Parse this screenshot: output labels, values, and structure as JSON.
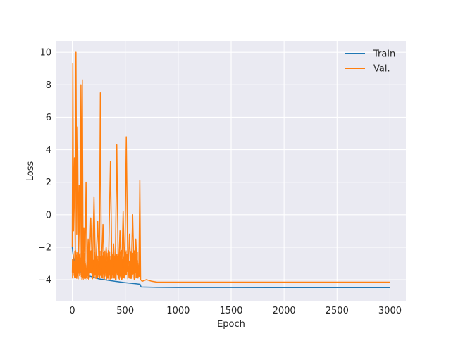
{
  "chart_data": {
    "type": "line",
    "title": "",
    "xlabel": "Epoch",
    "ylabel": "Loss",
    "xlim": [
      -150,
      3150
    ],
    "ylim": [
      -5.3,
      10.7
    ],
    "x_ticks": [
      0,
      500,
      1000,
      1500,
      2000,
      2500,
      3000
    ],
    "y_ticks": [
      -4,
      -2,
      0,
      2,
      4,
      6,
      8,
      10
    ],
    "grid": true,
    "style": "seaborn-darkgrid",
    "legend_position": "upper right",
    "series": [
      {
        "name": "Train",
        "color": "#1f77b4",
        "points": [
          [
            0,
            -2.0
          ],
          [
            10,
            -2.6
          ],
          [
            25,
            -3.0
          ],
          [
            50,
            -3.3
          ],
          [
            75,
            -3.5
          ],
          [
            100,
            -3.6
          ],
          [
            150,
            -3.75
          ],
          [
            200,
            -3.85
          ],
          [
            250,
            -3.95
          ],
          [
            300,
            -4.0
          ],
          [
            400,
            -4.1
          ],
          [
            500,
            -4.18
          ],
          [
            600,
            -4.25
          ],
          [
            640,
            -4.28
          ],
          [
            650,
            -4.45
          ],
          [
            800,
            -4.47
          ],
          [
            1000,
            -4.48
          ],
          [
            1500,
            -4.48
          ],
          [
            2000,
            -4.49
          ],
          [
            2500,
            -4.49
          ],
          [
            3000,
            -4.49
          ]
        ]
      },
      {
        "name": "Val.",
        "color": "#ff7f0e",
        "points": [
          [
            0,
            -2.0
          ],
          [
            5,
            9.3
          ],
          [
            12,
            -1.0
          ],
          [
            20,
            3.5
          ],
          [
            28,
            -2.5
          ],
          [
            35,
            10.0
          ],
          [
            42,
            -1.2
          ],
          [
            50,
            5.4
          ],
          [
            58,
            -2.8
          ],
          [
            65,
            1.8
          ],
          [
            75,
            -3.0
          ],
          [
            82,
            8.0
          ],
          [
            88,
            -2.8
          ],
          [
            95,
            8.3
          ],
          [
            102,
            -3.2
          ],
          [
            110,
            -0.8
          ],
          [
            120,
            -3.4
          ],
          [
            130,
            2.0
          ],
          [
            140,
            -3.5
          ],
          [
            150,
            -1.5
          ],
          [
            160,
            -3.6
          ],
          [
            175,
            -0.2
          ],
          [
            190,
            -3.6
          ],
          [
            205,
            1.1
          ],
          [
            220,
            -3.7
          ],
          [
            240,
            -0.4
          ],
          [
            255,
            -3.7
          ],
          [
            265,
            7.5
          ],
          [
            275,
            -3.8
          ],
          [
            290,
            -0.6
          ],
          [
            305,
            -3.8
          ],
          [
            320,
            -2.0
          ],
          [
            340,
            -3.9
          ],
          [
            360,
            3.3
          ],
          [
            375,
            -3.9
          ],
          [
            390,
            -1.8
          ],
          [
            405,
            -3.9
          ],
          [
            420,
            4.3
          ],
          [
            435,
            -3.9
          ],
          [
            450,
            -1.0
          ],
          [
            465,
            -3.9
          ],
          [
            480,
            0.2
          ],
          [
            495,
            -3.9
          ],
          [
            510,
            4.8
          ],
          [
            525,
            -3.9
          ],
          [
            540,
            -1.2
          ],
          [
            555,
            -3.9
          ],
          [
            570,
            0.0
          ],
          [
            585,
            -4.0
          ],
          [
            600,
            -1.5
          ],
          [
            615,
            -3.9
          ],
          [
            630,
            -3.0
          ],
          [
            638,
            2.1
          ],
          [
            645,
            -4.0
          ],
          [
            660,
            -4.1
          ],
          [
            700,
            -4.0
          ],
          [
            750,
            -4.1
          ],
          [
            800,
            -4.15
          ],
          [
            1000,
            -4.15
          ],
          [
            1500,
            -4.15
          ],
          [
            2000,
            -4.15
          ],
          [
            2500,
            -4.15
          ],
          [
            3000,
            -4.15
          ]
        ],
        "noise_band": {
          "x_range": [
            0,
            640
          ],
          "low": -4.0,
          "high": -2.2
        }
      }
    ]
  }
}
